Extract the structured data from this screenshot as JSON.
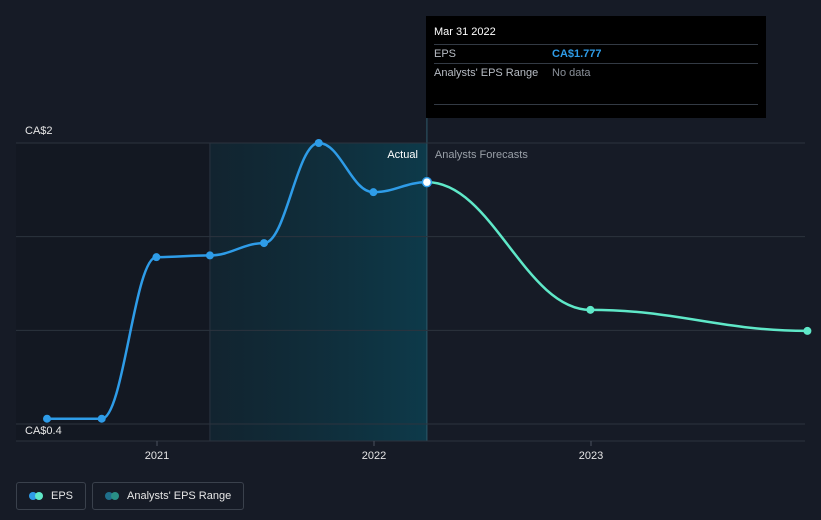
{
  "chart_data": {
    "type": "line",
    "ylim": [
      0.4,
      2.0
    ],
    "y_axis_labels": [
      "CA$2",
      "CA$0.4"
    ],
    "x_ticks": [
      "2021",
      "2022",
      "2023"
    ],
    "grid": true,
    "region_labels": {
      "actual": "Actual",
      "forecast": "Analysts Forecasts"
    },
    "series": [
      {
        "name": "EPS",
        "color": "#2e9ce8",
        "points": [
          {
            "x": "2020-06-30",
            "y": 0.43
          },
          {
            "x": "2020-09-30",
            "y": 0.43
          },
          {
            "x": "2020-12-31",
            "y": 1.35
          },
          {
            "x": "2021-03-31",
            "y": 1.36
          },
          {
            "x": "2021-06-30",
            "y": 1.43
          },
          {
            "x": "2021-09-30",
            "y": 2.0
          },
          {
            "x": "2021-12-31",
            "y": 1.72
          },
          {
            "x": "2022-03-31",
            "y": 1.777
          }
        ]
      },
      {
        "name": "Analysts Forecasts",
        "color": "#5fe8c8",
        "points": [
          {
            "x": "2022-03-31",
            "y": 1.777
          },
          {
            "x": "2022-12-31",
            "y": 1.05
          },
          {
            "x": "2023-12-31",
            "y": 0.93
          }
        ]
      }
    ]
  },
  "tooltip": {
    "date": "Mar 31 2022",
    "eps_label": "EPS",
    "eps_value": "CA$1.777",
    "range_label": "Analysts' EPS Range",
    "range_value": "No data"
  },
  "legend": {
    "eps_label": "EPS",
    "eps_colors": [
      "#2e9ce8",
      "#5fe8c8"
    ],
    "range_label": "Analysts' EPS Range",
    "range_colors": [
      "#1f6f8b",
      "#2a8f86"
    ]
  }
}
